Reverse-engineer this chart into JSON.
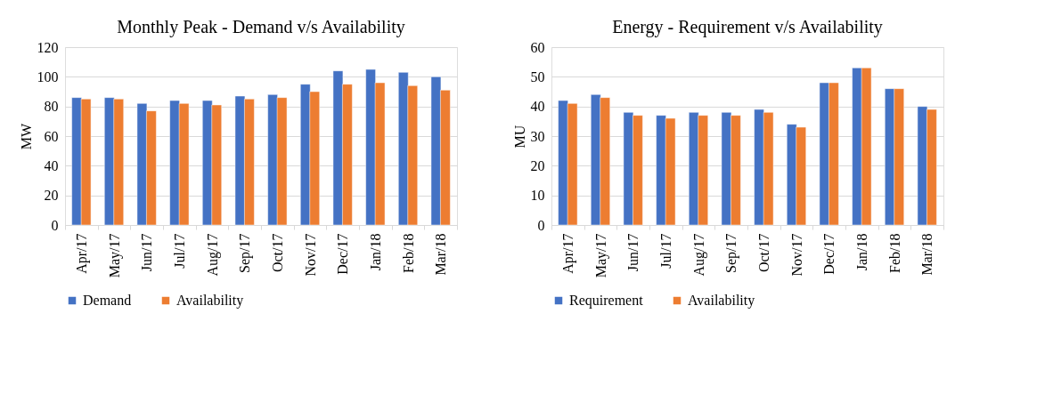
{
  "chart_data": [
    {
      "type": "bar",
      "title": "Monthly Peak - Demand v/s Availability",
      "ylabel": "MW",
      "categories": [
        "Apr/17",
        "May/17",
        "Jun/17",
        "Jul/17",
        "Aug/17",
        "Sep/17",
        "Oct/17",
        "Nov/17",
        "Dec/17",
        "Jan/18",
        "Feb/18",
        "Mar/18"
      ],
      "series": [
        {
          "name": "Demand",
          "color": "#4472c4",
          "values": [
            86,
            86,
            82,
            84,
            84,
            87,
            88,
            95,
            104,
            105,
            103,
            100
          ]
        },
        {
          "name": "Availability",
          "color": "#ed7d31",
          "values": [
            85,
            85,
            77,
            82,
            81,
            85,
            86,
            90,
            95,
            96,
            94,
            91
          ]
        }
      ],
      "ylim": [
        0,
        120
      ],
      "yticks": [
        0,
        20,
        40,
        60,
        80,
        100,
        120
      ],
      "grid": "y",
      "legend": "bottom"
    },
    {
      "type": "bar",
      "title": "Energy - Requirement v/s Availability",
      "ylabel": "MU",
      "categories": [
        "Apr/17",
        "May/17",
        "Jun/17",
        "Jul/17",
        "Aug/17",
        "Sep/17",
        "Oct/17",
        "Nov/17",
        "Dec/17",
        "Jan/18",
        "Feb/18",
        "Mar/18"
      ],
      "series": [
        {
          "name": "Requirement",
          "color": "#4472c4",
          "values": [
            42,
            44,
            38,
            37,
            38,
            38,
            39,
            34,
            48,
            53,
            46,
            40
          ]
        },
        {
          "name": "Availability",
          "color": "#ed7d31",
          "values": [
            41,
            43,
            37,
            36,
            37,
            37,
            38,
            33,
            48,
            53,
            46,
            39
          ]
        }
      ],
      "ylim": [
        0,
        60
      ],
      "yticks": [
        0,
        10,
        20,
        30,
        40,
        50,
        60
      ],
      "grid": "y",
      "legend": "bottom"
    }
  ]
}
